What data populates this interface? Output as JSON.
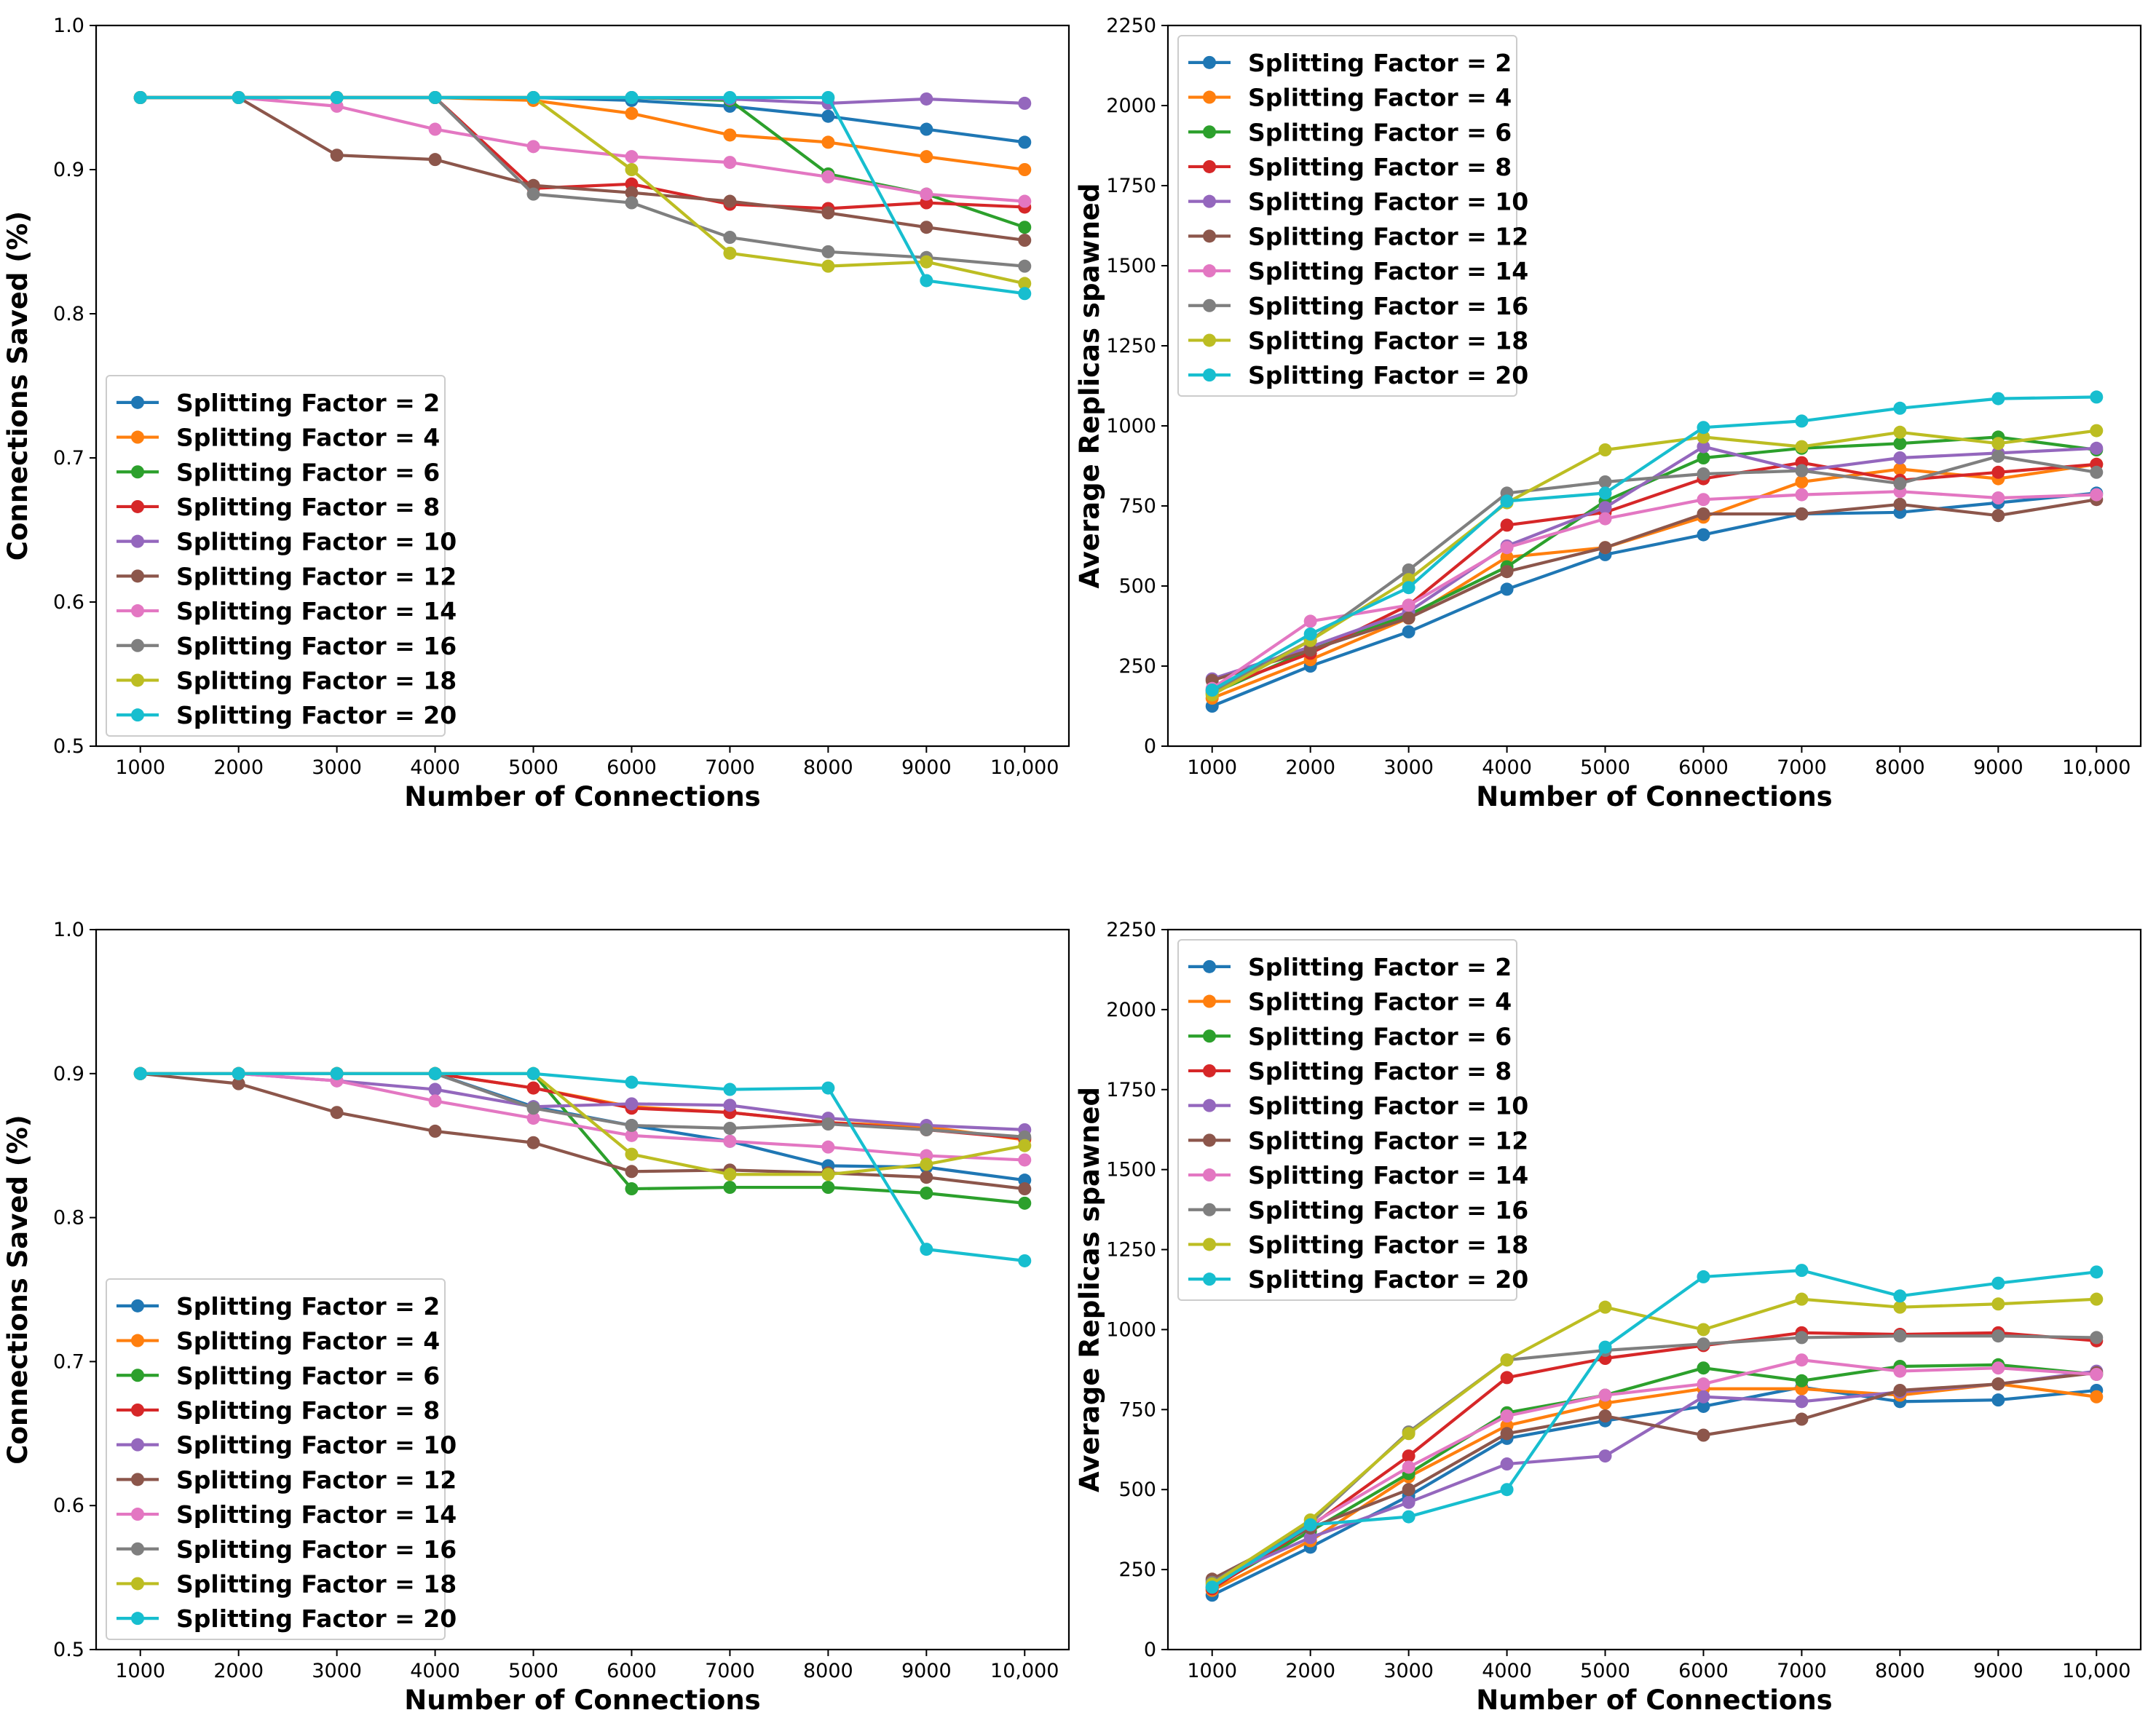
{
  "colors": {
    "series": [
      "#1f77b4",
      "#ff7f0e",
      "#2ca02c",
      "#d62728",
      "#9467bd",
      "#8c564b",
      "#e377c2",
      "#7f7f7f",
      "#bcbd22",
      "#17becf"
    ]
  },
  "chart_data": [
    {
      "type": "line",
      "panel": "top-left",
      "title": "",
      "xlabel": "Number of Connections",
      "ylabel": "Connections Saved (%)",
      "x": [
        1000,
        2000,
        3000,
        4000,
        5000,
        6000,
        7000,
        8000,
        9000,
        10000
      ],
      "xticklabels": [
        "1000",
        "2000",
        "3000",
        "4000",
        "5000",
        "6000",
        "7000",
        "8000",
        "9000",
        "10,000"
      ],
      "ylim": [
        0.5,
        1.0
      ],
      "yticks": [
        0.5,
        0.6,
        0.7,
        0.8,
        0.9,
        1.0
      ],
      "yticklabels": [
        "0.5",
        "0.6",
        "0.7",
        "0.8",
        "0.9",
        "1.0"
      ],
      "legend_position": "lower-left",
      "series": [
        {
          "name": "Splitting Factor = 2",
          "values": [
            0.95,
            0.95,
            0.95,
            0.95,
            0.95,
            0.948,
            0.944,
            0.937,
            0.928,
            0.919
          ]
        },
        {
          "name": "Splitting Factor = 4",
          "values": [
            0.95,
            0.95,
            0.95,
            0.95,
            0.948,
            0.939,
            0.924,
            0.919,
            0.909,
            0.9
          ]
        },
        {
          "name": "Splitting Factor = 6",
          "values": [
            0.95,
            0.95,
            0.95,
            0.95,
            0.95,
            0.95,
            0.948,
            0.897,
            0.883,
            0.86
          ]
        },
        {
          "name": "Splitting Factor = 8",
          "values": [
            0.95,
            0.95,
            0.95,
            0.95,
            0.887,
            0.89,
            0.876,
            0.873,
            0.877,
            0.874
          ]
        },
        {
          "name": "Splitting Factor = 10",
          "values": [
            0.95,
            0.95,
            0.95,
            0.95,
            0.95,
            0.95,
            0.949,
            0.946,
            0.949,
            0.946
          ]
        },
        {
          "name": "Splitting Factor = 12",
          "values": [
            0.95,
            0.95,
            0.91,
            0.907,
            0.889,
            0.884,
            0.878,
            0.87,
            0.86,
            0.851
          ]
        },
        {
          "name": "Splitting Factor = 14",
          "values": [
            0.95,
            0.95,
            0.944,
            0.928,
            0.916,
            0.909,
            0.905,
            0.895,
            0.883,
            0.878
          ]
        },
        {
          "name": "Splitting Factor = 16",
          "values": [
            0.95,
            0.95,
            0.95,
            0.95,
            0.883,
            0.877,
            0.853,
            0.843,
            0.839,
            0.833
          ]
        },
        {
          "name": "Splitting Factor = 18",
          "values": [
            0.95,
            0.95,
            0.95,
            0.95,
            0.95,
            0.9,
            0.842,
            0.833,
            0.836,
            0.821
          ]
        },
        {
          "name": "Splitting Factor = 20",
          "values": [
            0.95,
            0.95,
            0.95,
            0.95,
            0.95,
            0.95,
            0.95,
            0.95,
            0.823,
            0.814
          ]
        }
      ]
    },
    {
      "type": "line",
      "panel": "top-right",
      "title": "",
      "xlabel": "Number of Connections",
      "ylabel": "Average Replicas spawned",
      "x": [
        1000,
        2000,
        3000,
        4000,
        5000,
        6000,
        7000,
        8000,
        9000,
        10000
      ],
      "xticklabels": [
        "1000",
        "2000",
        "3000",
        "4000",
        "5000",
        "6000",
        "7000",
        "8000",
        "9000",
        "10,000"
      ],
      "ylim": [
        0,
        2250
      ],
      "yticks": [
        0,
        250,
        500,
        750,
        1000,
        1250,
        1500,
        1750,
        2000,
        2250
      ],
      "yticklabels": [
        "0",
        "250",
        "500",
        "750",
        "1000",
        "1250",
        "1500",
        "1750",
        "2000",
        "2250"
      ],
      "legend_position": "upper-left",
      "series": [
        {
          "name": "Splitting Factor = 2",
          "values": [
            125,
            250,
            357,
            490,
            598,
            660,
            725,
            730,
            760,
            790
          ]
        },
        {
          "name": "Splitting Factor = 4",
          "values": [
            150,
            270,
            400,
            590,
            620,
            715,
            825,
            865,
            835,
            880
          ]
        },
        {
          "name": "Splitting Factor = 6",
          "values": [
            165,
            300,
            410,
            560,
            765,
            900,
            930,
            945,
            965,
            925
          ]
        },
        {
          "name": "Splitting Factor = 8",
          "values": [
            175,
            290,
            440,
            690,
            730,
            835,
            885,
            830,
            855,
            880
          ]
        },
        {
          "name": "Splitting Factor = 10",
          "values": [
            210,
            310,
            420,
            625,
            745,
            935,
            860,
            900,
            915,
            930
          ]
        },
        {
          "name": "Splitting Factor = 12",
          "values": [
            205,
            300,
            400,
            545,
            620,
            725,
            725,
            755,
            720,
            770
          ]
        },
        {
          "name": "Splitting Factor = 14",
          "values": [
            180,
            390,
            440,
            620,
            710,
            770,
            785,
            795,
            775,
            785
          ]
        },
        {
          "name": "Splitting Factor = 16",
          "values": [
            170,
            330,
            550,
            790,
            825,
            850,
            860,
            820,
            905,
            855
          ]
        },
        {
          "name": "Splitting Factor = 18",
          "values": [
            160,
            330,
            520,
            760,
            925,
            965,
            935,
            980,
            945,
            985
          ]
        },
        {
          "name": "Splitting Factor = 20",
          "values": [
            175,
            350,
            495,
            765,
            790,
            995,
            1015,
            1055,
            1085,
            1090
          ]
        }
      ]
    },
    {
      "type": "line",
      "panel": "bottom-left",
      "title": "",
      "xlabel": "Number of Connections",
      "ylabel": "Connections Saved (%)",
      "x": [
        1000,
        2000,
        3000,
        4000,
        5000,
        6000,
        7000,
        8000,
        9000,
        10000
      ],
      "xticklabels": [
        "1000",
        "2000",
        "3000",
        "4000",
        "5000",
        "6000",
        "7000",
        "8000",
        "9000",
        "10,000"
      ],
      "ylim": [
        0.5,
        1.0
      ],
      "yticks": [
        0.5,
        0.6,
        0.7,
        0.8,
        0.9,
        1.0
      ],
      "yticklabels": [
        "0.5",
        "0.6",
        "0.7",
        "0.8",
        "0.9",
        "1.0"
      ],
      "legend_position": "lower-left",
      "series": [
        {
          "name": "Splitting Factor = 2",
          "values": [
            0.9,
            0.9,
            0.9,
            0.9,
            0.877,
            0.864,
            0.853,
            0.836,
            0.835,
            0.826
          ]
        },
        {
          "name": "Splitting Factor = 4",
          "values": [
            0.9,
            0.9,
            0.9,
            0.9,
            0.89,
            0.877,
            0.873,
            0.866,
            0.863,
            0.854
          ]
        },
        {
          "name": "Splitting Factor = 6",
          "values": [
            0.9,
            0.9,
            0.9,
            0.9,
            0.9,
            0.82,
            0.821,
            0.821,
            0.817,
            0.81
          ]
        },
        {
          "name": "Splitting Factor = 8",
          "values": [
            0.9,
            0.9,
            0.9,
            0.9,
            0.89,
            0.876,
            0.873,
            0.866,
            0.861,
            0.855
          ]
        },
        {
          "name": "Splitting Factor = 10",
          "values": [
            0.9,
            0.9,
            0.895,
            0.889,
            0.877,
            0.879,
            0.878,
            0.869,
            0.864,
            0.861
          ]
        },
        {
          "name": "Splitting Factor = 12",
          "values": [
            0.9,
            0.893,
            0.873,
            0.86,
            0.852,
            0.832,
            0.833,
            0.831,
            0.828,
            0.82
          ]
        },
        {
          "name": "Splitting Factor = 14",
          "values": [
            0.9,
            0.9,
            0.895,
            0.881,
            0.869,
            0.857,
            0.853,
            0.849,
            0.843,
            0.84
          ]
        },
        {
          "name": "Splitting Factor = 16",
          "values": [
            0.9,
            0.9,
            0.9,
            0.9,
            0.876,
            0.864,
            0.862,
            0.865,
            0.861,
            0.856
          ]
        },
        {
          "name": "Splitting Factor = 18",
          "values": [
            0.9,
            0.9,
            0.9,
            0.9,
            0.9,
            0.844,
            0.83,
            0.83,
            0.837,
            0.85
          ]
        },
        {
          "name": "Splitting Factor = 20",
          "values": [
            0.9,
            0.9,
            0.9,
            0.9,
            0.9,
            0.894,
            0.889,
            0.89,
            0.778,
            0.77
          ]
        }
      ]
    },
    {
      "type": "line",
      "panel": "bottom-right",
      "title": "",
      "xlabel": "Number of Connections",
      "ylabel": "Average Replicas spawned",
      "x": [
        1000,
        2000,
        3000,
        4000,
        5000,
        6000,
        7000,
        8000,
        9000,
        10000
      ],
      "xticklabels": [
        "1000",
        "2000",
        "3000",
        "4000",
        "5000",
        "6000",
        "7000",
        "8000",
        "9000",
        "10,000"
      ],
      "ylim": [
        0,
        2250
      ],
      "yticks": [
        0,
        250,
        500,
        750,
        1000,
        1250,
        1500,
        1750,
        2000,
        2250
      ],
      "yticklabels": [
        "0",
        "250",
        "500",
        "750",
        "1000",
        "1250",
        "1500",
        "1750",
        "2000",
        "2250"
      ],
      "legend_position": "upper-left",
      "series": [
        {
          "name": "Splitting Factor = 2",
          "values": [
            170,
            320,
            480,
            660,
            715,
            760,
            820,
            775,
            780,
            810
          ]
        },
        {
          "name": "Splitting Factor = 4",
          "values": [
            185,
            340,
            540,
            700,
            770,
            815,
            815,
            795,
            830,
            790
          ]
        },
        {
          "name": "Splitting Factor = 6",
          "values": [
            195,
            370,
            550,
            740,
            795,
            880,
            840,
            885,
            890,
            860
          ]
        },
        {
          "name": "Splitting Factor = 8",
          "values": [
            190,
            385,
            605,
            850,
            910,
            950,
            990,
            985,
            990,
            965
          ]
        },
        {
          "name": "Splitting Factor = 10",
          "values": [
            215,
            350,
            460,
            580,
            605,
            790,
            775,
            805,
            830,
            870
          ]
        },
        {
          "name": "Splitting Factor = 12",
          "values": [
            220,
            380,
            500,
            675,
            730,
            670,
            720,
            810,
            830,
            865
          ]
        },
        {
          "name": "Splitting Factor = 14",
          "values": [
            200,
            390,
            570,
            730,
            795,
            830,
            905,
            870,
            880,
            860
          ]
        },
        {
          "name": "Splitting Factor = 16",
          "values": [
            210,
            395,
            680,
            905,
            935,
            955,
            975,
            980,
            980,
            975
          ]
        },
        {
          "name": "Splitting Factor = 18",
          "values": [
            205,
            405,
            675,
            905,
            1070,
            1000,
            1095,
            1070,
            1080,
            1095
          ]
        },
        {
          "name": "Splitting Factor = 20",
          "values": [
            195,
            390,
            415,
            500,
            945,
            1165,
            1185,
            1105,
            1145,
            1180
          ]
        }
      ]
    }
  ]
}
